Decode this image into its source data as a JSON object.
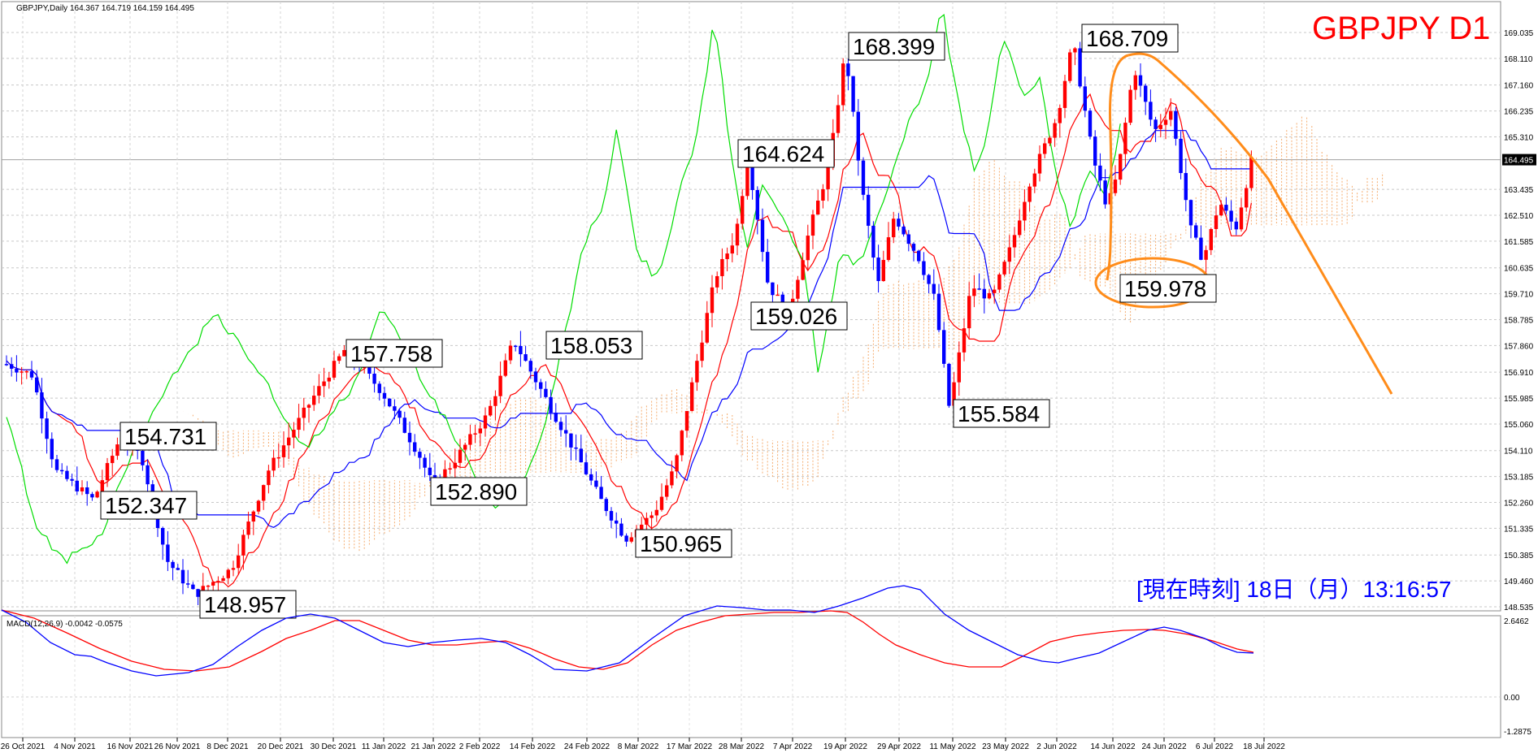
{
  "header": {
    "symbol_line": "GBPJPY,Daily  164.367 164.719 164.159 164.495",
    "title": "GBPJPY D1",
    "title_color": "#ff0000"
  },
  "macd": {
    "label": "MACD(12,26,9) -0.0042 -0.0575",
    "ticks": [
      "2.6462",
      "0.00",
      "-1.2875"
    ],
    "main_color": "#0000ff",
    "signal_color": "#ff0000",
    "main_path": [
      [
        0,
        665
      ],
      [
        30,
        680
      ],
      [
        60,
        705
      ],
      [
        90,
        720
      ],
      [
        110,
        722
      ],
      [
        130,
        730
      ],
      [
        160,
        740
      ],
      [
        190,
        746
      ],
      [
        230,
        742
      ],
      [
        260,
        732
      ],
      [
        290,
        710
      ],
      [
        320,
        690
      ],
      [
        350,
        675
      ],
      [
        380,
        670
      ],
      [
        410,
        675
      ],
      [
        440,
        690
      ],
      [
        470,
        705
      ],
      [
        500,
        710
      ],
      [
        530,
        705
      ],
      [
        560,
        702
      ],
      [
        590,
        700
      ],
      [
        620,
        705
      ],
      [
        650,
        720
      ],
      [
        680,
        738
      ],
      [
        720,
        740
      ],
      [
        760,
        730
      ],
      [
        800,
        700
      ],
      [
        840,
        672
      ],
      [
        880,
        660
      ],
      [
        910,
        662
      ],
      [
        940,
        665
      ],
      [
        970,
        665
      ],
      [
        1000,
        668
      ],
      [
        1030,
        660
      ],
      [
        1060,
        650
      ],
      [
        1090,
        638
      ],
      [
        1110,
        635
      ],
      [
        1130,
        640
      ],
      [
        1160,
        670
      ],
      [
        1190,
        690
      ],
      [
        1220,
        705
      ],
      [
        1250,
        720
      ],
      [
        1280,
        728
      ],
      [
        1300,
        730
      ],
      [
        1320,
        725
      ],
      [
        1350,
        718
      ],
      [
        1380,
        704
      ],
      [
        1410,
        690
      ],
      [
        1430,
        686
      ],
      [
        1450,
        690
      ],
      [
        1480,
        700
      ],
      [
        1500,
        710
      ],
      [
        1520,
        717
      ],
      [
        1540,
        718
      ]
    ],
    "signal_path": [
      [
        0,
        665
      ],
      [
        40,
        675
      ],
      [
        80,
        693
      ],
      [
        120,
        712
      ],
      [
        160,
        728
      ],
      [
        200,
        738
      ],
      [
        240,
        740
      ],
      [
        280,
        735
      ],
      [
        320,
        716
      ],
      [
        350,
        700
      ],
      [
        380,
        690
      ],
      [
        410,
        678
      ],
      [
        440,
        678
      ],
      [
        470,
        690
      ],
      [
        500,
        702
      ],
      [
        530,
        708
      ],
      [
        560,
        708
      ],
      [
        590,
        705
      ],
      [
        620,
        703
      ],
      [
        650,
        712
      ],
      [
        680,
        725
      ],
      [
        710,
        735
      ],
      [
        740,
        738
      ],
      [
        770,
        730
      ],
      [
        800,
        708
      ],
      [
        830,
        690
      ],
      [
        860,
        680
      ],
      [
        890,
        672
      ],
      [
        920,
        670
      ],
      [
        950,
        668
      ],
      [
        980,
        668
      ],
      [
        1000,
        667
      ],
      [
        1020,
        666
      ],
      [
        1040,
        668
      ],
      [
        1060,
        680
      ],
      [
        1080,
        695
      ],
      [
        1100,
        708
      ],
      [
        1130,
        720
      ],
      [
        1160,
        730
      ],
      [
        1190,
        735
      ],
      [
        1230,
        735
      ],
      [
        1260,
        720
      ],
      [
        1290,
        704
      ],
      [
        1320,
        697
      ],
      [
        1350,
        693
      ],
      [
        1380,
        690
      ],
      [
        1410,
        689
      ],
      [
        1430,
        690
      ],
      [
        1460,
        695
      ],
      [
        1490,
        703
      ],
      [
        1520,
        713
      ],
      [
        1540,
        717
      ]
    ]
  },
  "clock": {
    "text": "[現在時刻] 18日（月）13:16:57",
    "color": "#0000ff"
  },
  "chart_data": {
    "type": "candlestick",
    "title": "GBPJPY D1",
    "symbol": "GBPJPY",
    "timeframe": "Daily",
    "current_price": "164.495",
    "ohlc_current": {
      "open": 164.367,
      "high": 164.719,
      "low": 164.159,
      "close": 164.495
    },
    "y_ticks": [
      "169.035",
      "168.110",
      "167.160",
      "166.235",
      "165.310",
      "164.495",
      "163.435",
      "162.510",
      "161.585",
      "160.635",
      "159.710",
      "158.785",
      "157.860",
      "156.910",
      "155.985",
      "155.060",
      "154.110",
      "153.185",
      "152.260",
      "151.335",
      "150.385",
      "149.460",
      "148.535"
    ],
    "y_range": [
      148.535,
      169.035
    ],
    "x_ticks": [
      "26 Oct 2021",
      "4 Nov 2021",
      "16 Nov 2021",
      "26 Nov 2021",
      "8 Dec 2021",
      "20 Dec 2021",
      "30 Dec 2021",
      "11 Jan 2022",
      "21 Jan 2022",
      "2 Feb 2022",
      "14 Feb 2022",
      "24 Feb 2022",
      "8 Mar 2022",
      "17 Mar 2022",
      "28 Mar 2022",
      "7 Apr 2022",
      "19 Apr 2022",
      "29 Apr 2022",
      "11 May 2022",
      "23 May 2022",
      "2 Jun 2022",
      "14 Jun 2022",
      "24 Jun 2022",
      "6 Jul 2022",
      "18 Jul 2022"
    ],
    "annotations": [
      {
        "text": "154.731",
        "x": "16 Nov 2021",
        "value": 154.731
      },
      {
        "text": "152.347",
        "x": "16 Nov 2021",
        "value": 152.347
      },
      {
        "text": "148.957",
        "x": "8 Dec 2021",
        "value": 148.957
      },
      {
        "text": "157.758",
        "x": "30 Dec 2021",
        "value": 157.758
      },
      {
        "text": "152.890",
        "x": "21 Jan 2022",
        "value": 152.89
      },
      {
        "text": "158.053",
        "x": "14 Feb 2022",
        "value": 158.053
      },
      {
        "text": "150.965",
        "x": "8 Mar 2022",
        "value": 150.965
      },
      {
        "text": "164.624",
        "x": "28 Mar 2022",
        "value": 164.624
      },
      {
        "text": "159.026",
        "x": "28 Mar 2022",
        "value": 159.026
      },
      {
        "text": "168.399",
        "x": "19 Apr 2022",
        "value": 168.399
      },
      {
        "text": "155.584",
        "x": "11 May 2022",
        "value": 155.584
      },
      {
        "text": "168.709",
        "x": "2 Jun 2022",
        "value": 168.709
      },
      {
        "text": "159.978",
        "x": "14 Jun 2022",
        "value": 159.978
      }
    ],
    "candle_colors": {
      "up": "#ff0000",
      "down": "#0000ff"
    },
    "indicators": {
      "ichimoku": {
        "tenkan_color": "#ff0000",
        "kijun_color": "#0000ff",
        "chikou_color": "#00dd00",
        "kumo_color": "#f4a460"
      },
      "trendline_color": "#ff8c1a"
    },
    "grid": true
  }
}
